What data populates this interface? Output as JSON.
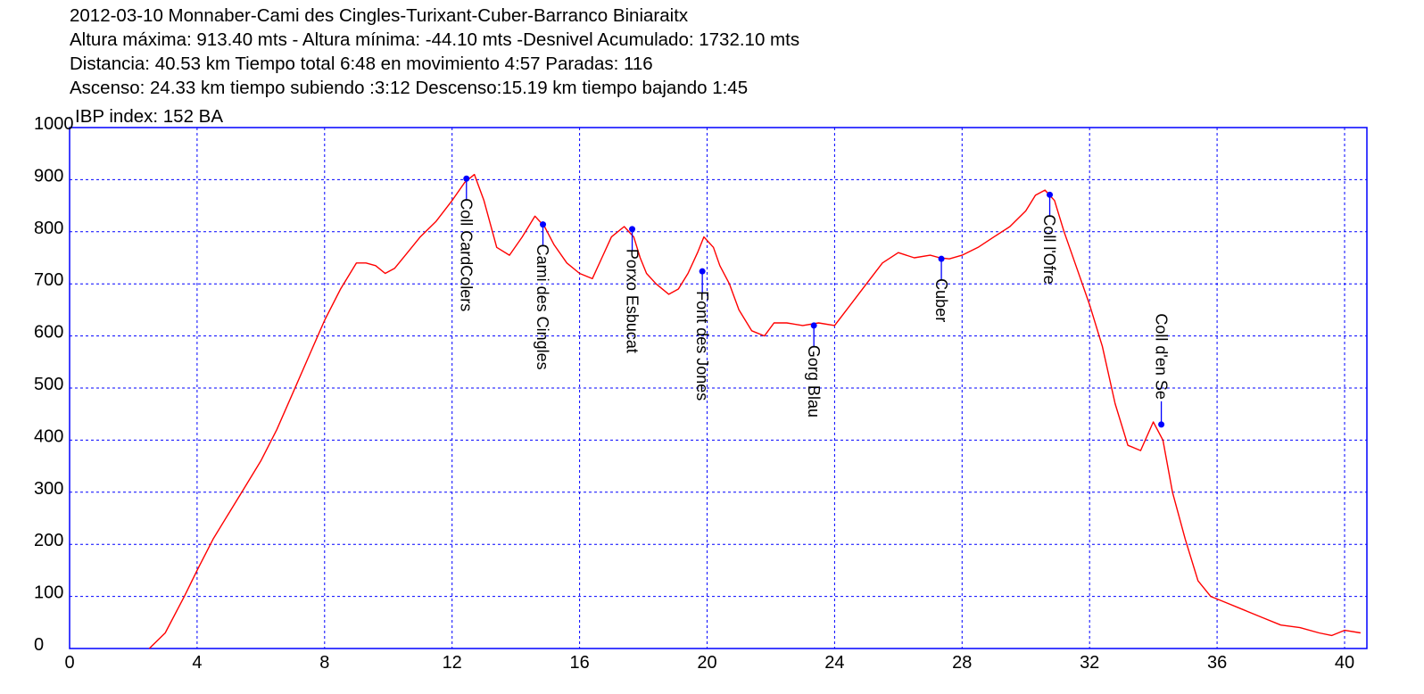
{
  "header": {
    "lines": [
      "2012-03-10 Monnaber-Cami des Cingles-Turixant-Cuber-Barranco Biniaraitx",
      "Altura máxima: 913.40 mts - Altura mínima: -44.10 mts -Desnivel Acumulado: 1732.10 mts",
      "Distancia: 40.53 km  Tiempo total 6:48  en movimiento 4:57 Paradas: 116",
      "Ascenso: 24.33 km  tiempo subiendo :3:12  Descenso:15.19 km tiempo bajando 1:45"
    ],
    "ibp": "IBP index: 152 BA"
  },
  "colors": {
    "axis": "#0000ff",
    "grid": "#0000ff",
    "line": "#ff0000",
    "waypoint": "#0000ff",
    "text": "#000000"
  },
  "chart_data": {
    "type": "line",
    "title": "",
    "xlabel": "",
    "ylabel": "",
    "xlim": [
      0,
      40.7
    ],
    "ylim": [
      0,
      1000
    ],
    "grid": true,
    "x_ticks": [
      "0",
      "4",
      "8",
      "12",
      "16",
      "20",
      "24",
      "28",
      "32",
      "36",
      "40"
    ],
    "y_ticks": [
      "0",
      "100",
      "200",
      "300",
      "400",
      "500",
      "600",
      "700",
      "800",
      "900",
      "1000"
    ],
    "series": [
      {
        "x": [
          2.5,
          3.0,
          3.6,
          4.0,
          4.5,
          5.0,
          5.5,
          6.0,
          6.5,
          7.0,
          7.5,
          8.0,
          8.5,
          9.0,
          9.3,
          9.6,
          9.9,
          10.2,
          10.6,
          11.0,
          11.5,
          12.0,
          12.4,
          12.7,
          13.0,
          13.4,
          13.8,
          14.2,
          14.6,
          14.9,
          15.2,
          15.6,
          16.0,
          16.4,
          16.7,
          17.0,
          17.4,
          17.7,
          17.9,
          18.1,
          18.4,
          18.8,
          19.1,
          19.4,
          19.7,
          19.9,
          20.2,
          20.4,
          20.7,
          21.0,
          21.4,
          21.8,
          22.1,
          22.5,
          23.0,
          23.5,
          24.0,
          24.5,
          25.0,
          25.5,
          26.0,
          26.5,
          27.0,
          27.3,
          27.6,
          28.0,
          28.5,
          29.0,
          29.5,
          30.0,
          30.3,
          30.6,
          30.9,
          31.2,
          31.6,
          32.0,
          32.4,
          32.8,
          33.2,
          33.6,
          34.0,
          34.3,
          34.6,
          35.0,
          35.4,
          35.8,
          36.2,
          36.8,
          37.4,
          38.0,
          38.6,
          39.2,
          39.6,
          40.0,
          40.5
        ],
        "y": [
          0,
          30,
          100,
          150,
          210,
          260,
          310,
          360,
          420,
          490,
          560,
          630,
          690,
          740,
          740,
          735,
          720,
          730,
          760,
          790,
          820,
          860,
          895,
          910,
          860,
          770,
          755,
          790,
          830,
          810,
          775,
          740,
          720,
          710,
          750,
          790,
          810,
          790,
          750,
          720,
          700,
          680,
          690,
          720,
          760,
          790,
          770,
          735,
          700,
          650,
          610,
          600,
          625,
          625,
          620,
          625,
          620,
          660,
          700,
          740,
          760,
          750,
          755,
          750,
          748,
          755,
          770,
          790,
          810,
          840,
          870,
          880,
          860,
          800,
          730,
          660,
          580,
          470,
          390,
          380,
          435,
          400,
          300,
          210,
          130,
          100,
          90,
          75,
          60,
          45,
          40,
          30,
          25,
          35,
          30
        ]
      }
    ],
    "waypoints": [
      {
        "label": "Coll CardColers",
        "x": 12.45,
        "y": 902
      },
      {
        "label": "Cami des Cingles",
        "x": 14.85,
        "y": 814
      },
      {
        "label": "Porxo Esbucat",
        "x": 17.65,
        "y": 805
      },
      {
        "label": "Font des Jones",
        "x": 19.85,
        "y": 724
      },
      {
        "label": "Gorg Blau",
        "x": 23.35,
        "y": 620
      },
      {
        "label": "Cuber",
        "x": 27.35,
        "y": 748
      },
      {
        "label": "Coll l'Ofre",
        "x": 30.75,
        "y": 871
      },
      {
        "label": "Coll d'en Se",
        "x": 34.25,
        "y": 430
      }
    ]
  }
}
